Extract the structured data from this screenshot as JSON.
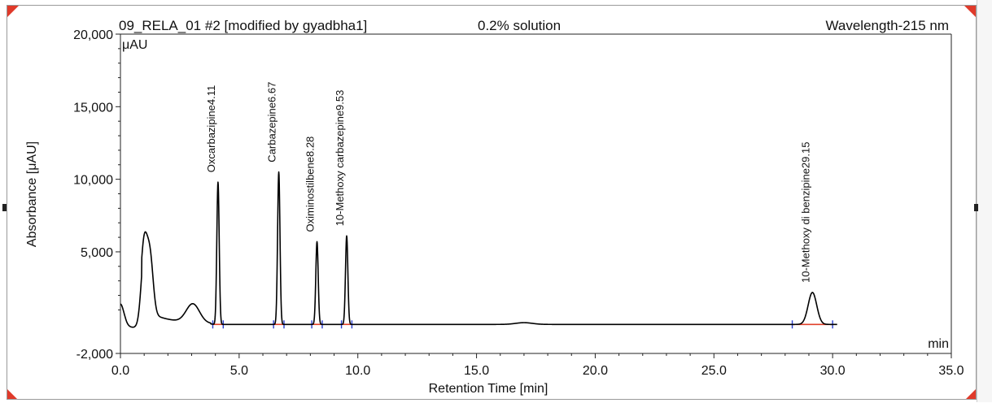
{
  "header": {
    "sample": "09_RELA_01 #2 [modified by gyadbha1]",
    "solution": "0.2% solution",
    "wavelength": "Wavelength-215 nm"
  },
  "colors": {
    "trace": "#000000",
    "baseline_marker": "#e0402a",
    "boundary_marker": "#2a3fd0",
    "corner_accent": "#e03a2a"
  },
  "chart_data": {
    "type": "line",
    "xlabel": "Retention Time [min]",
    "ylabel": "Absorbance [μAU]",
    "y_unit_label": "μAU",
    "x_unit_label": "min",
    "xlim": [
      0,
      35
    ],
    "ylim": [
      -2000,
      20000
    ],
    "x_ticks": [
      0,
      5,
      10,
      15,
      20,
      25,
      30,
      35
    ],
    "x_tick_labels": [
      "0.0",
      "5.0",
      "10.0",
      "15.0",
      "20.0",
      "25.0",
      "30.0",
      "35.0"
    ],
    "y_ticks": [
      -2000,
      5000,
      10000,
      15000,
      20000
    ],
    "y_tick_labels": [
      "-2,000",
      "5,000",
      "10,000",
      "15,000",
      "20,000"
    ],
    "baseline": 0,
    "peaks": [
      {
        "label": "Oxcarbazipine4.11",
        "rt": 4.11,
        "height": 9800
      },
      {
        "label": "Carbazepine6.67",
        "rt": 6.67,
        "height": 10500
      },
      {
        "label": "Oximinostilbene8.28",
        "rt": 8.28,
        "height": 5700
      },
      {
        "label": "10-Methoxy carbazepine9.53",
        "rt": 9.53,
        "height": 6100
      },
      {
        "label": "10-Methoxy di benzipine29.15",
        "rt": 29.15,
        "height": 2200
      }
    ],
    "unlabeled_features": [
      {
        "rt": 0.0,
        "height": 1400
      },
      {
        "rt": 1.0,
        "height": 4600
      },
      {
        "rt": 1.25,
        "height": 3800
      },
      {
        "rt": 3.05,
        "height": 1300
      },
      {
        "rt": 17.0,
        "height": 120
      }
    ]
  }
}
